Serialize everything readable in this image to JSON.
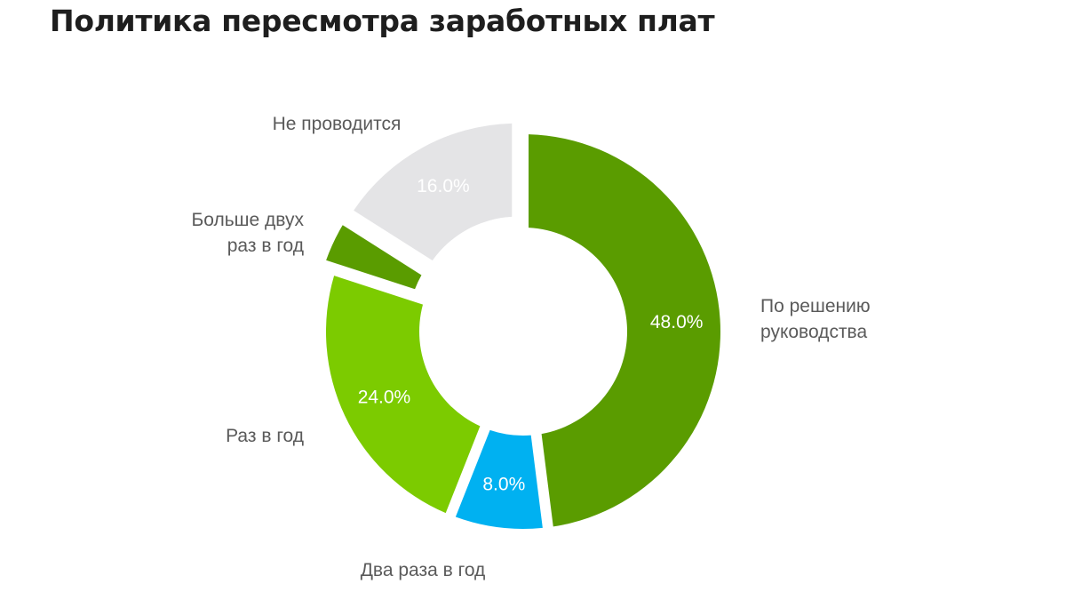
{
  "title": "Политика пересмотра заработных плат",
  "chart_data": {
    "type": "pie",
    "variant": "donut",
    "title": "Политика пересмотра заработных плат",
    "slices": [
      {
        "label": "По решению руководства",
        "label_lines": [
          "По решению",
          "руководства"
        ],
        "value": 48.0,
        "value_label": "48.0%",
        "color": "#5a9c00"
      },
      {
        "label": "Два раза в год",
        "label_lines": [
          "Два раза в год"
        ],
        "value": 8.0,
        "value_label": "8.0%",
        "color": "#00b1f1"
      },
      {
        "label": "Раз в год",
        "label_lines": [
          "Раз в год"
        ],
        "value": 24.0,
        "value_label": "24.0%",
        "color": "#7ccb00"
      },
      {
        "label": "Больше двух раз в год",
        "label_lines": [
          "Больше двух",
          "раз в год"
        ],
        "value": 4.0,
        "value_label": "",
        "color": "#5a9c00"
      },
      {
        "label": "Не проводится",
        "label_lines": [
          "Не проводится"
        ],
        "value": 16.0,
        "value_label": "16.0%",
        "color": "#e4e4e6"
      }
    ],
    "start": "12 o'clock",
    "direction": "clockwise",
    "legend": "none"
  }
}
